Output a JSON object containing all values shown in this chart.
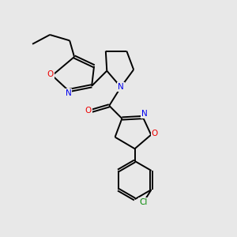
{
  "background_color": "#e8e8e8",
  "bond_color": "#000000",
  "atom_colors": {
    "N": "#0000ee",
    "O": "#ee0000",
    "Cl": "#008800",
    "C": "#000000"
  },
  "figsize": [
    3.0,
    3.0
  ],
  "dpi": 100
}
